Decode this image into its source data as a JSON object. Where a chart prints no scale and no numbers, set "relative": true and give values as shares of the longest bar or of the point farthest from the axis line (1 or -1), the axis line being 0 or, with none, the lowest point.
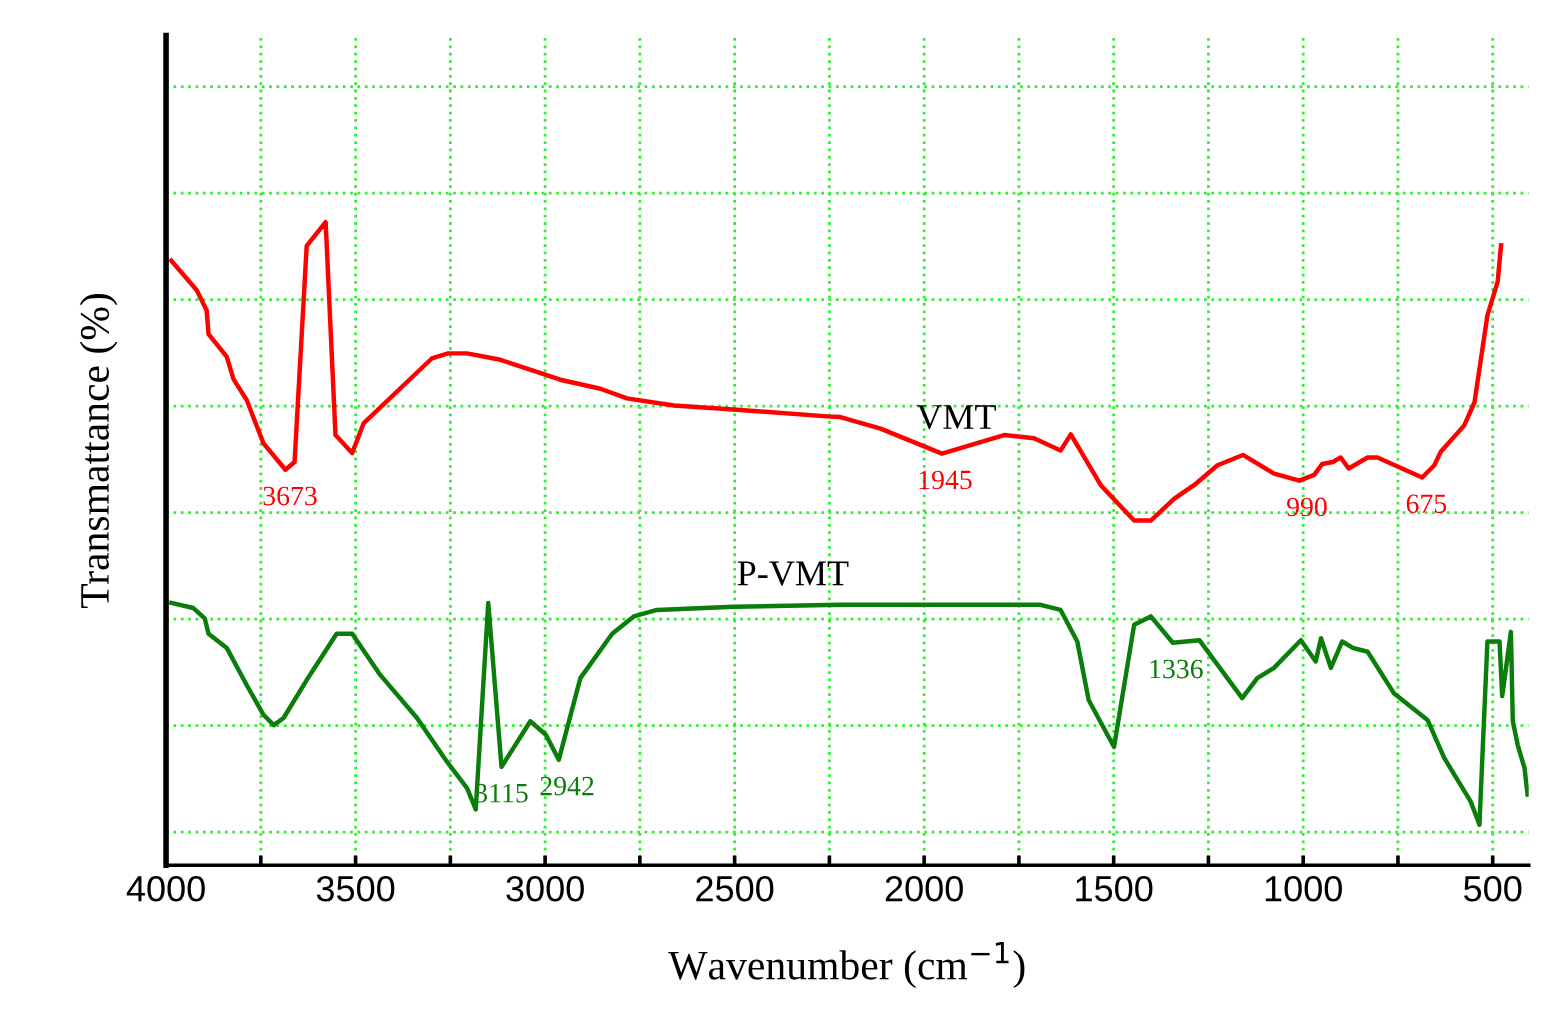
{
  "chart_data": {
    "type": "line",
    "relative": true,
    "xlabel": "Wavenumber (cm$^{−1}$)",
    "ylabel": "Transmattance (%)",
    "xlim": [
      4000,
      405
    ],
    "xticks": [
      4000,
      {
        "value": 3750,
        "label": null
      },
      3500,
      {
        "value": 3250,
        "label": null
      },
      3000,
      {
        "value": 2750,
        "label": null
      },
      2500,
      {
        "value": 2250,
        "label": null
      },
      2000,
      {
        "value": 1750,
        "label": null
      },
      1500,
      {
        "value": 1250,
        "label": null
      },
      1000,
      {
        "value": 750,
        "label": null
      },
      500
    ],
    "grid": true,
    "marker": "none",
    "line_style": "solid",
    "series": [
      {
        "name": "VMT",
        "color": "#ff0000",
        "x": [
          3986,
          3919,
          3893,
          3888,
          3840,
          3822,
          3787,
          3743,
          3685,
          3661,
          3629,
          3579,
          3553,
          3509,
          3479,
          3299,
          3256,
          3206,
          3118,
          2960,
          2854,
          2784,
          2660,
          2485,
          2256,
          2221,
          2115,
          1953,
          1789,
          1710,
          1640,
          1613,
          1534,
          1446,
          1402,
          1340,
          1288,
          1226,
          1159,
          1077,
          1010,
          971,
          950,
          922,
          901,
          880,
          830,
          804,
          686,
          654,
          637,
          575,
          548,
          514,
          487,
          478
        ],
        "values": [
          0.94,
          0.894,
          0.863,
          0.826,
          0.791,
          0.756,
          0.723,
          0.656,
          0.615,
          0.627,
          0.963,
          1.0,
          0.669,
          0.641,
          0.687,
          0.788,
          0.796,
          0.796,
          0.786,
          0.755,
          0.741,
          0.726,
          0.715,
          0.708,
          0.698,
          0.697,
          0.679,
          0.64,
          0.669,
          0.664,
          0.645,
          0.67,
          0.591,
          0.536,
          0.536,
          0.57,
          0.591,
          0.622,
          0.638,
          0.609,
          0.598,
          0.607,
          0.624,
          0.627,
          0.634,
          0.617,
          0.634,
          0.634,
          0.603,
          0.622,
          0.643,
          0.684,
          0.72,
          0.855,
          0.907,
          0.964
        ]
      },
      {
        "name": "P-VMT",
        "color": "#0a7d0a",
        "x": [
          3986,
          3928,
          3898,
          3888,
          3840,
          3787,
          3743,
          3716,
          3690,
          3629,
          3550,
          3509,
          3435,
          3338,
          3259,
          3206,
          3183,
          3150,
          3115,
          3039,
          2998,
          2964,
          2907,
          2823,
          2766,
          2705,
          2502,
          2221,
          1693,
          1640,
          1596,
          1566,
          1499,
          1446,
          1402,
          1344,
          1274,
          1161,
          1121,
          1077,
          1006,
          967,
          953,
          927,
          897,
          869,
          830,
          760,
          672,
          628,
          558,
          535,
          514,
          482,
          475,
          452,
          447,
          434,
          416,
          408
        ],
        "values": [
          0.408,
          0.4,
          0.384,
          0.36,
          0.338,
          0.28,
          0.234,
          0.218,
          0.229,
          0.288,
          0.36,
          0.36,
          0.296,
          0.229,
          0.161,
          0.12,
          0.087,
          0.408,
          0.153,
          0.224,
          0.203,
          0.164,
          0.291,
          0.36,
          0.387,
          0.397,
          0.402,
          0.405,
          0.405,
          0.397,
          0.348,
          0.257,
          0.184,
          0.374,
          0.387,
          0.346,
          0.35,
          0.26,
          0.291,
          0.307,
          0.35,
          0.317,
          0.353,
          0.307,
          0.348,
          0.338,
          0.332,
          0.267,
          0.226,
          0.167,
          0.099,
          0.063,
          0.348,
          0.348,
          0.263,
          0.363,
          0.224,
          0.187,
          0.151,
          0.11
        ]
      }
    ],
    "annotations": [
      {
        "text": "3673",
        "x": 3673,
        "y": 0.615
      },
      {
        "text": "1945",
        "x": 1945,
        "y": 0.64
      },
      {
        "text": "990",
        "x": 990,
        "y": 0.598
      },
      {
        "text": "675",
        "x": 675,
        "y": 0.603
      },
      {
        "text": "3115",
        "x": 3115,
        "y": 0.153
      },
      {
        "text": "2942",
        "x": 2942,
        "y": 0.164
      },
      {
        "text": "1336",
        "x": 1336,
        "y": 0.346
      }
    ]
  }
}
